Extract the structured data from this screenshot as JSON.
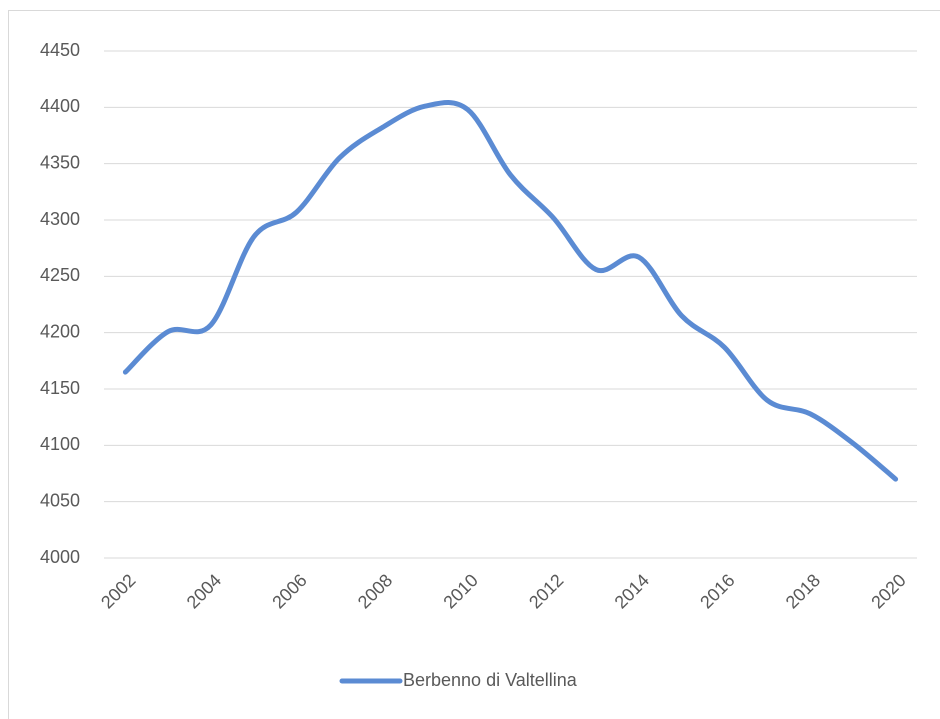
{
  "chart_data": {
    "type": "line",
    "x": [
      2002,
      2003,
      2004,
      2005,
      2006,
      2007,
      2008,
      2009,
      2010,
      2011,
      2012,
      2013,
      2014,
      2015,
      2016,
      2017,
      2018,
      2019,
      2020
    ],
    "series": [
      {
        "name": "Berbenno di Valtellina",
        "color": "#5b8bd3",
        "values": [
          4165,
          4201,
          4207,
          4285,
          4307,
          4355,
          4382,
          4401,
          4398,
          4340,
          4302,
          4256,
          4267,
          4215,
          4187,
          4140,
          4128,
          4102,
          4070
        ]
      }
    ],
    "xlim": [
      2001.5,
      2020.5
    ],
    "xticks": [
      2002,
      2004,
      2006,
      2008,
      2010,
      2012,
      2014,
      2016,
      2018,
      2020
    ],
    "ylim": [
      4000,
      4450
    ],
    "yticks": [
      4000,
      4050,
      4100,
      4150,
      4200,
      4250,
      4300,
      4350,
      4400,
      4450
    ],
    "grid": true,
    "legend": "bottom"
  }
}
